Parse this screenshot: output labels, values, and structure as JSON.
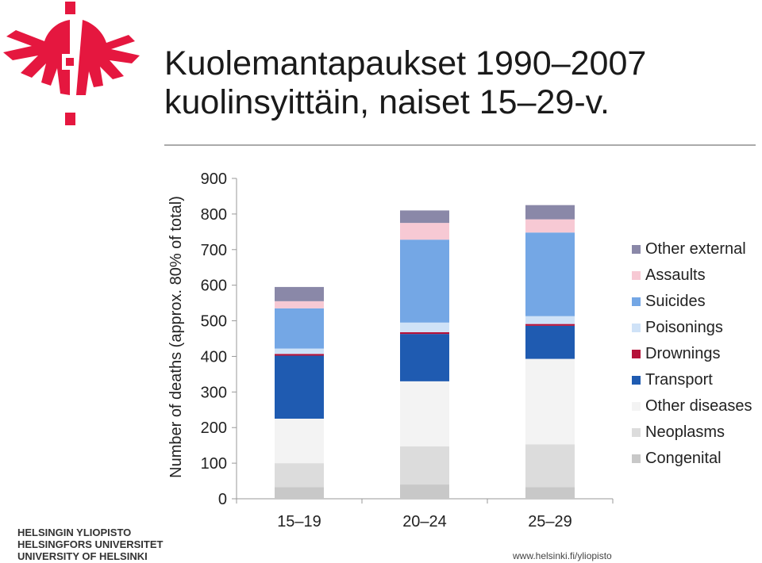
{
  "header": {
    "title_line1": "Kuolemantapaukset 1990–2007",
    "title_line2": "kuolinsyittäin, naiset 15–29-v."
  },
  "branding": {
    "university_names": [
      "HELSINGIN YLIOPISTO",
      "HELSINGFORS UNIVERSITET",
      "UNIVERSITY OF HELSINKI"
    ],
    "footer_url": "www.helsinki.fi/yliopisto",
    "logo_icon": "flame-logo-icon",
    "logo_color": "#e5173f"
  },
  "chart_data": {
    "type": "bar",
    "stacked": true,
    "title": "",
    "xlabel": "",
    "ylabel": "Number of deaths (approx. 80% of total)",
    "ylim": [
      0,
      900
    ],
    "yticks": [
      0,
      100,
      200,
      300,
      400,
      500,
      600,
      700,
      800,
      900
    ],
    "grid": false,
    "legend_position": "right",
    "categories": [
      "15–19",
      "20–24",
      "25–29"
    ],
    "series": [
      {
        "name": "Congenital",
        "color": "#c8c8c8",
        "values": [
          33,
          40,
          33
        ]
      },
      {
        "name": "Neoplasms",
        "color": "#dcdcdc",
        "values": [
          67,
          107,
          120
        ]
      },
      {
        "name": "Other diseases",
        "color": "#f3f3f3",
        "values": [
          125,
          183,
          240
        ]
      },
      {
        "name": "Transport",
        "color": "#1f5bb1",
        "values": [
          177,
          133,
          93
        ]
      },
      {
        "name": "Drownings",
        "color": "#b5123a",
        "values": [
          5,
          5,
          5
        ]
      },
      {
        "name": "Poisonings",
        "color": "#cfe2f7",
        "values": [
          15,
          27,
          22
        ]
      },
      {
        "name": "Suicides",
        "color": "#74a7e5",
        "values": [
          113,
          233,
          235
        ]
      },
      {
        "name": "Assaults",
        "color": "#f7c9d4",
        "values": [
          20,
          47,
          37
        ]
      },
      {
        "name": "Other external",
        "color": "#8a88a8",
        "values": [
          40,
          35,
          40
        ]
      }
    ]
  }
}
